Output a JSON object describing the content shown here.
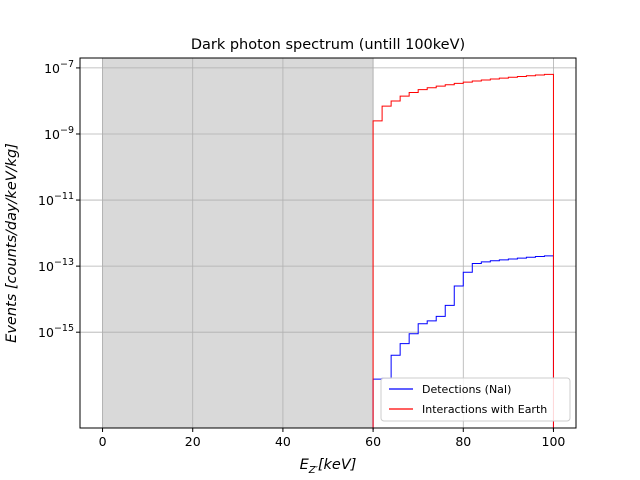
{
  "chart_data": {
    "type": "line",
    "title": "Dark photon spectrum (untill 100keV)",
    "xlabel": "E_{Z'}[keV]",
    "ylabel": "Events [counts/day/keV/kg]",
    "xlim": [
      -5,
      105
    ],
    "ylim_log10": [
      -17.9,
      -6.7
    ],
    "y_scale": "log",
    "grid": true,
    "x_ticks": [
      0,
      20,
      40,
      60,
      80,
      100
    ],
    "y_ticks_log10": [
      -7,
      -9,
      -11,
      -13,
      -15
    ],
    "y_tick_labels": [
      {
        "base": "10",
        "exp": "−7"
      },
      {
        "base": "10",
        "exp": "−9"
      },
      {
        "base": "10",
        "exp": "−11"
      },
      {
        "base": "10",
        "exp": "−13"
      },
      {
        "base": "10",
        "exp": "−15"
      }
    ],
    "shaded_region": {
      "x": [
        0,
        60
      ],
      "color": "#d9d9d9"
    },
    "legend": {
      "placement": "lower-right",
      "entries": [
        {
          "label": "Detections (NaI)",
          "color": "#0000ff"
        },
        {
          "label": "Interactions with Earth",
          "color": "#ff0000"
        }
      ]
    },
    "series": [
      {
        "name": "Detections (NaI)",
        "color": "#0000ff",
        "edges": [
          60,
          62,
          64,
          66,
          68,
          70,
          72,
          74,
          76,
          78,
          80,
          82,
          84,
          86,
          88,
          90,
          92,
          94,
          96,
          98,
          100
        ],
        "values": [
          3.8e-17,
          4e-17,
          2e-16,
          4.5e-16,
          9e-16,
          1.8e-15,
          2.2e-15,
          3e-15,
          6.5e-15,
          2.5e-14,
          6.5e-14,
          1.2e-13,
          1.35e-13,
          1.45e-13,
          1.55e-13,
          1.65e-13,
          1.75e-13,
          1.85e-13,
          1.95e-13,
          2.05e-13
        ]
      },
      {
        "name": "Interactions with Earth",
        "color": "#ff0000",
        "edges": [
          60,
          62,
          64,
          66,
          68,
          70,
          72,
          74,
          76,
          78,
          80,
          82,
          84,
          86,
          88,
          90,
          92,
          94,
          96,
          98,
          100
        ],
        "values": [
          2.5e-09,
          7e-09,
          1e-08,
          1.4e-08,
          1.8e-08,
          2.2e-08,
          2.5e-08,
          2.8e-08,
          3.1e-08,
          3.4e-08,
          3.7e-08,
          4e-08,
          4.3e-08,
          4.6e-08,
          4.9e-08,
          5.2e-08,
          5.5e-08,
          5.8e-08,
          6.1e-08,
          6.4e-08
        ]
      }
    ]
  }
}
